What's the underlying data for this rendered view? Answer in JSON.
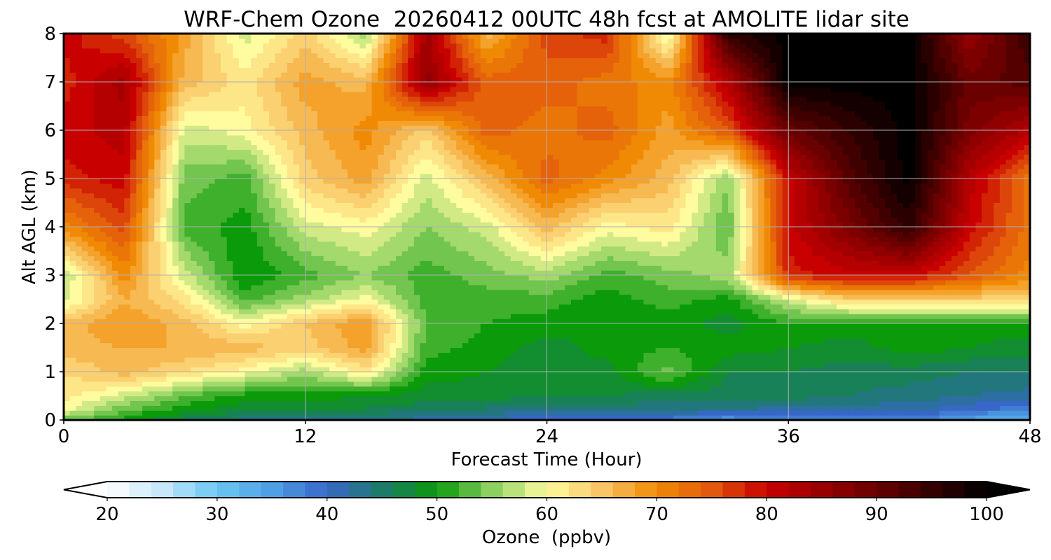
{
  "chart_data": {
    "type": "heatmap",
    "title": "WRF-Chem Ozone  20260412 00UTC 48h fcst at AMOLITE lidar site",
    "xlabel": "Forecast Time (Hour)",
    "ylabel": "Alt AGL (km)",
    "xlim": [
      0,
      48
    ],
    "ylim": [
      0,
      8
    ],
    "xticks": [
      0,
      12,
      24,
      36,
      48
    ],
    "yticks": [
      0,
      1,
      2,
      3,
      4,
      5,
      6,
      7,
      8
    ],
    "grid": true,
    "x": [
      0,
      3,
      6,
      9,
      12,
      15,
      18,
      21,
      24,
      27,
      30,
      33,
      36,
      39,
      42,
      45,
      48
    ],
    "y": [
      0,
      0.25,
      0.5,
      1,
      1.5,
      2,
      2.5,
      3,
      4,
      5,
      6,
      7,
      8
    ],
    "z": [
      [
        54,
        50,
        46,
        44,
        44,
        43,
        42,
        41,
        39,
        39,
        38,
        35,
        38,
        38,
        38,
        34,
        32
      ],
      [
        60,
        54,
        50,
        48,
        48,
        47,
        46,
        45,
        44,
        44,
        44,
        44,
        42,
        42,
        42,
        40,
        38
      ],
      [
        62,
        58,
        53,
        50,
        50,
        49,
        48,
        48,
        47,
        47,
        46,
        46,
        46,
        45,
        44,
        43,
        42
      ],
      [
        63,
        66,
        63,
        60,
        56,
        62,
        50,
        49,
        48,
        48,
        54,
        47,
        47,
        46,
        46,
        45,
        45
      ],
      [
        66,
        67,
        67,
        66,
        64,
        68,
        52,
        50,
        48,
        50,
        51,
        50,
        49,
        48,
        50,
        49,
        48
      ],
      [
        66,
        69,
        66,
        60,
        65,
        69,
        53,
        51,
        50,
        49,
        50,
        48,
        51,
        50,
        50,
        50,
        50
      ],
      [
        58,
        67,
        62,
        52,
        56,
        60,
        52,
        52,
        52,
        50,
        52,
        50,
        58,
        64,
        64,
        64,
        64
      ],
      [
        57,
        70,
        58,
        49,
        52,
        55,
        52,
        54,
        56,
        52,
        54,
        56,
        78,
        80,
        80,
        75,
        70
      ],
      [
        70,
        76,
        52,
        50,
        58,
        60,
        55,
        58,
        66,
        60,
        62,
        53,
        80,
        88,
        96,
        80,
        72
      ],
      [
        78,
        80,
        54,
        52,
        64,
        68,
        58,
        66,
        74,
        70,
        66,
        55,
        80,
        92,
        100,
        82,
        72
      ],
      [
        80,
        82,
        58,
        60,
        66,
        70,
        64,
        74,
        72,
        74,
        68,
        75,
        90,
        95,
        100,
        88,
        82
      ],
      [
        78,
        84,
        66,
        62,
        68,
        66,
        86,
        74,
        74,
        72,
        70,
        82,
        100,
        100,
        100,
        90,
        92
      ],
      [
        80,
        76,
        68,
        58,
        64,
        56,
        84,
        66,
        76,
        78,
        58,
        96,
        100,
        100,
        100,
        85,
        95
      ]
    ],
    "colorbar": {
      "label": "Ozone  (ppbv)",
      "min": 20,
      "max": 100,
      "ticks": [
        20,
        30,
        40,
        50,
        60,
        70,
        80,
        90,
        100
      ],
      "extend": "both"
    },
    "colormap": [
      {
        "v": 20,
        "c": "#ffffff"
      },
      {
        "v": 25,
        "c": "#c6e8fa"
      },
      {
        "v": 30,
        "c": "#6ac8f3"
      },
      {
        "v": 35,
        "c": "#4f9fe4"
      },
      {
        "v": 40,
        "c": "#3867c8"
      },
      {
        "v": 45,
        "c": "#1d7b6a"
      },
      {
        "v": 50,
        "c": "#0a9a0a"
      },
      {
        "v": 55,
        "c": "#8cd060"
      },
      {
        "v": 60,
        "c": "#fffca0"
      },
      {
        "v": 65,
        "c": "#f9c565"
      },
      {
        "v": 70,
        "c": "#f08a05"
      },
      {
        "v": 75,
        "c": "#e2580c"
      },
      {
        "v": 80,
        "c": "#c80000"
      },
      {
        "v": 90,
        "c": "#6a0000"
      },
      {
        "v": 100,
        "c": "#000000"
      }
    ]
  }
}
